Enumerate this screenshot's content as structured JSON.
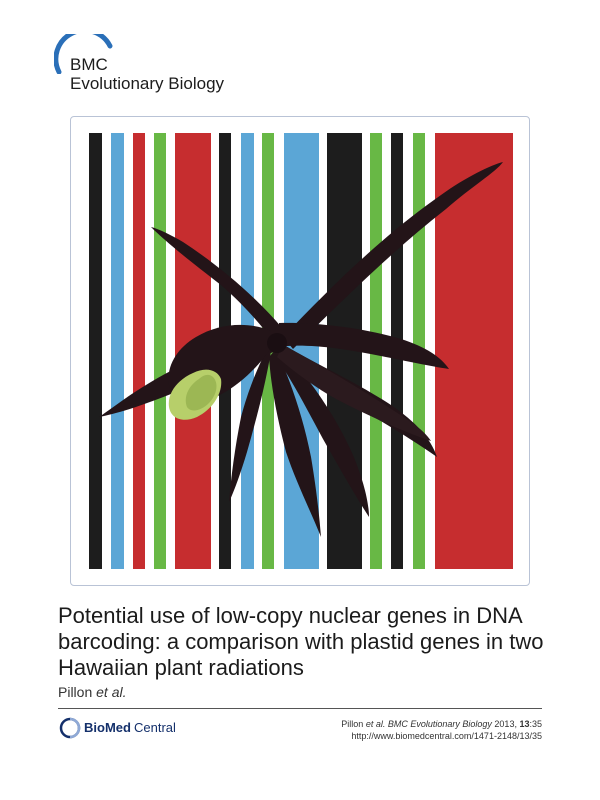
{
  "journal": {
    "line1": "BMC",
    "line2": "Evolutionary Biology",
    "logo_color": "#2a6fb8"
  },
  "cover": {
    "stripe_colors": [
      "#1d1d1d",
      "#5ba6d6",
      "#c62d2f",
      "#68b845",
      "#c62d2f",
      "#1d1d1d",
      "#5ba6d6",
      "#68b845",
      "#5ba6d6",
      "#1d1d1d",
      "#68b845",
      "#1d1d1d",
      "#68b845",
      "#c62d2f"
    ],
    "flower_color": "#231418",
    "lip_color": "#b7cf6a"
  },
  "article": {
    "title": "Potential use of low-copy nuclear genes in DNA barcoding: a comparison with plastid genes in two Hawaiian plant radiations",
    "author": "Pillon",
    "author_suffix": "et al."
  },
  "publisher": {
    "name_bold": "BioMed",
    "name_normal": "Central"
  },
  "citation": {
    "author": "Pillon",
    "et_al": "et al.",
    "journal": "BMC Evolutionary Biology",
    "year": "2013,",
    "volume": "13",
    "article": ":35",
    "url": "http://www.biomedcentral.com/1471-2148/13/35"
  }
}
